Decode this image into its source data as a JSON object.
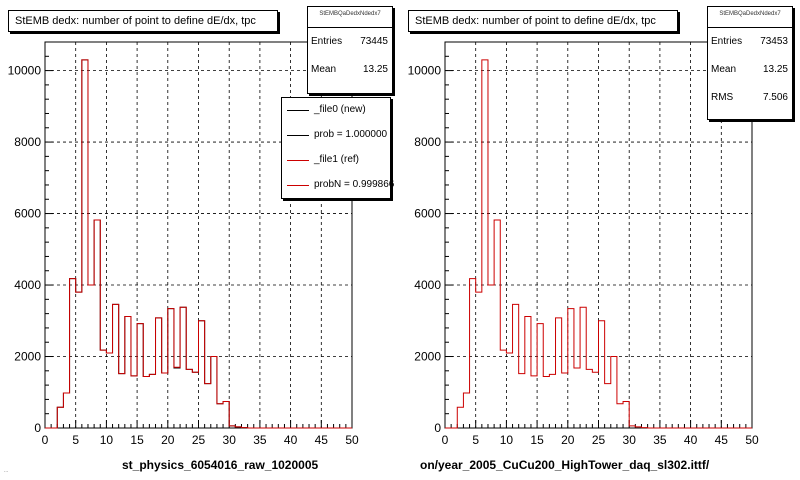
{
  "colors": {
    "new": "#000000",
    "ref": "#cc0000",
    "grid": "#000000",
    "background": "#ffffff"
  },
  "tiny_footer": "...",
  "chart_data": [
    {
      "type": "bar",
      "histogram": "step",
      "title": "StEMB dedx: number of point to define dE/dx, tpc",
      "xlabel": "st_physics_6054016_raw_1020005",
      "ylabel": "",
      "xlim": [
        0,
        50
      ],
      "ylim": [
        0,
        10800
      ],
      "grid": true,
      "x_ticks": [
        0,
        5,
        10,
        15,
        20,
        25,
        30,
        35,
        40,
        45,
        50
      ],
      "x_tick_labels": [
        "0",
        "5",
        "10",
        "15",
        "20",
        "25",
        "30",
        "35",
        "40",
        "45",
        "50"
      ],
      "y_ticks": [
        0,
        2000,
        4000,
        6000,
        8000,
        10000
      ],
      "y_tick_labels": [
        "0",
        "2000",
        "4000",
        "6000",
        "8000",
        "10000"
      ],
      "bin_width": 1,
      "series": [
        {
          "name": "_file0 (new)",
          "color": "#000000",
          "values": [
            0,
            0,
            580,
            980,
            4180,
            3800,
            10300,
            4000,
            5820,
            2180,
            2100,
            3460,
            1520,
            3120,
            1460,
            2920,
            1440,
            1500,
            3080,
            1540,
            3340,
            1680,
            3380,
            1640,
            1560,
            3000,
            1240,
            2000,
            680,
            740,
            60,
            30,
            10,
            0,
            0,
            0,
            0,
            0,
            0,
            0,
            0,
            0,
            0,
            0,
            0,
            0,
            0,
            0,
            0,
            0
          ]
        },
        {
          "name": "_file1 (ref)",
          "color": "#cc0000",
          "values": [
            0,
            0,
            580,
            980,
            4180,
            3800,
            10300,
            4000,
            5820,
            2180,
            2100,
            3460,
            1520,
            3120,
            1460,
            2920,
            1440,
            1500,
            3080,
            1540,
            3340,
            1700,
            3380,
            1640,
            1560,
            3000,
            1240,
            2000,
            680,
            740,
            60,
            30,
            10,
            0,
            0,
            0,
            0,
            0,
            0,
            0,
            0,
            0,
            0,
            0,
            0,
            0,
            0,
            0,
            0,
            0
          ]
        }
      ],
      "stats": {
        "name": "StEMBQaDedxNdedx7",
        "entries_label": "Entries",
        "entries": "73445",
        "mean_label": "Mean",
        "mean": "13.25"
      },
      "legend": {
        "placement": "top-right",
        "entries": [
          {
            "text": "_file0 (new)",
            "color": "#000000"
          },
          {
            "text": "prob = 1.000000",
            "color": "#000000"
          },
          {
            "text": "_file1 (ref)",
            "color": "#cc0000"
          },
          {
            "text": "probN = 0.999866",
            "color": "#cc0000"
          }
        ]
      }
    },
    {
      "type": "bar",
      "histogram": "step",
      "title": "StEMB dedx: number of point to define dE/dx, tpc",
      "xlabel": "on/year_2005_CuCu200_HighTower_daq_sl302.ittf/",
      "ylabel": "",
      "xlim": [
        0,
        50
      ],
      "ylim": [
        0,
        10800
      ],
      "grid": true,
      "x_ticks": [
        0,
        5,
        10,
        15,
        20,
        25,
        30,
        35,
        40,
        45,
        50
      ],
      "x_tick_labels": [
        "0",
        "5",
        "10",
        "15",
        "20",
        "25",
        "30",
        "35",
        "40",
        "45",
        "50"
      ],
      "y_ticks": [
        0,
        2000,
        4000,
        6000,
        8000,
        10000
      ],
      "y_tick_labels": [
        "0",
        "2000",
        "4000",
        "6000",
        "8000",
        "10000"
      ],
      "bin_width": 1,
      "series": [
        {
          "name": "",
          "color": "#cc0000",
          "values": [
            0,
            0,
            580,
            980,
            4180,
            3800,
            10300,
            4000,
            5820,
            2180,
            2100,
            3460,
            1520,
            3120,
            1460,
            2920,
            1440,
            1500,
            3080,
            1540,
            3340,
            1680,
            3380,
            1640,
            1560,
            3000,
            1240,
            2000,
            680,
            740,
            60,
            30,
            10,
            0,
            0,
            0,
            0,
            0,
            0,
            0,
            0,
            0,
            0,
            0,
            0,
            0,
            0,
            0,
            0,
            0
          ]
        }
      ],
      "stats": {
        "name": "StEMBQaDedxNdedx7",
        "entries_label": "Entries",
        "entries": "73453",
        "mean_label": "Mean",
        "mean": "13.25",
        "rms_label": "RMS",
        "rms": "7.506"
      }
    }
  ]
}
